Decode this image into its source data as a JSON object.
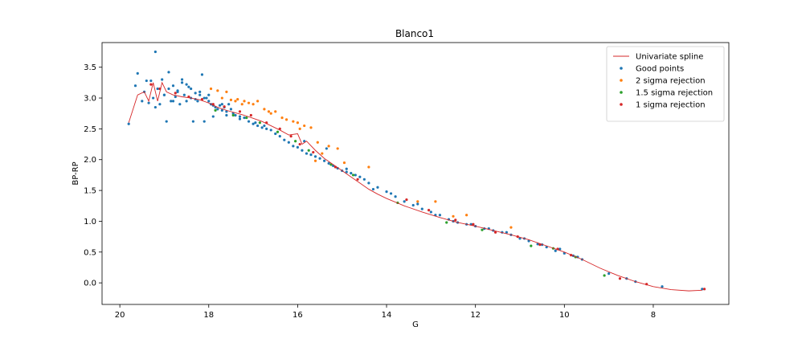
{
  "chart_data": {
    "type": "scatter",
    "title": "Blanco1",
    "xlabel": "G",
    "ylabel": "BP-RP",
    "xlim": [
      20.4,
      6.3
    ],
    "ylim": [
      -0.35,
      3.9
    ],
    "x_inverted": true,
    "xticks": [
      20,
      18,
      16,
      14,
      12,
      10,
      8
    ],
    "yticks": [
      0.0,
      0.5,
      1.0,
      1.5,
      2.0,
      2.5,
      3.0,
      3.5
    ],
    "xtick_labels": [
      "20",
      "18",
      "16",
      "14",
      "12",
      "10",
      "8"
    ],
    "ytick_labels": [
      "0.0",
      "0.5",
      "1.0",
      "1.5",
      "2.0",
      "2.5",
      "3.0",
      "3.5"
    ],
    "grid": false,
    "legend_position": "top-right",
    "series": [
      {
        "name": "Univariate spline",
        "kind": "line",
        "color": "#d62728",
        "x": [
          19.8,
          19.6,
          19.45,
          19.35,
          19.25,
          19.15,
          19.05,
          18.95,
          18.8,
          18.6,
          18.4,
          18.2,
          18.0,
          17.8,
          17.6,
          17.4,
          17.2,
          17.0,
          16.8,
          16.6,
          16.4,
          16.2,
          16.0,
          15.9,
          15.8,
          15.6,
          15.4,
          15.2,
          15.0,
          14.8,
          14.6,
          14.4,
          14.2,
          14.0,
          13.6,
          13.2,
          12.8,
          12.4,
          12.0,
          11.6,
          11.2,
          10.8,
          10.4,
          10.0,
          9.6,
          9.2,
          8.8,
          8.4,
          8.0,
          7.6,
          7.2,
          6.9
        ],
        "y": [
          2.6,
          3.05,
          3.1,
          2.95,
          3.25,
          2.95,
          3.25,
          3.1,
          3.05,
          3.02,
          3.0,
          2.97,
          2.92,
          2.85,
          2.8,
          2.76,
          2.72,
          2.67,
          2.62,
          2.55,
          2.48,
          2.4,
          2.42,
          2.25,
          2.3,
          2.15,
          2.02,
          1.92,
          1.82,
          1.72,
          1.62,
          1.52,
          1.44,
          1.37,
          1.25,
          1.15,
          1.06,
          0.98,
          0.92,
          0.85,
          0.78,
          0.7,
          0.6,
          0.5,
          0.38,
          0.24,
          0.12,
          0.02,
          -0.06,
          -0.11,
          -0.13,
          -0.12
        ]
      },
      {
        "name": "Good points",
        "kind": "scatter",
        "color": "#1f77b4",
        "x": [
          19.8,
          19.65,
          19.6,
          19.5,
          19.45,
          19.35,
          19.3,
          19.25,
          19.2,
          19.15,
          19.1,
          19.05,
          19.0,
          18.95,
          18.9,
          18.85,
          18.8,
          18.75,
          18.7,
          18.65,
          18.6,
          18.55,
          18.5,
          18.45,
          18.4,
          18.35,
          18.3,
          18.25,
          18.2,
          18.15,
          18.1,
          18.05,
          18.0,
          17.95,
          17.9,
          17.85,
          17.8,
          17.75,
          17.7,
          17.65,
          17.6,
          17.55,
          17.5,
          17.45,
          17.4,
          17.3,
          17.2,
          17.1,
          17.0,
          16.9,
          16.8,
          16.7,
          16.6,
          16.5,
          16.4,
          16.3,
          16.2,
          16.1,
          16.0,
          15.9,
          15.8,
          15.7,
          15.6,
          15.5,
          15.4,
          15.3,
          15.2,
          15.1,
          15.0,
          14.9,
          14.8,
          14.7,
          14.6,
          14.5,
          14.4,
          14.2,
          14.0,
          13.8,
          13.6,
          13.4,
          13.2,
          13.0,
          12.8,
          12.6,
          12.4,
          12.2,
          12.0,
          11.8,
          11.6,
          11.4,
          11.2,
          11.0,
          10.8,
          10.6,
          10.4,
          10.2,
          10.0,
          9.8,
          9.6,
          9.0,
          8.6,
          8.4,
          7.8,
          6.9,
          19.2,
          19.0,
          18.9,
          18.7,
          18.5,
          18.3,
          18.1,
          17.9,
          17.7,
          19.4,
          18.8,
          18.6,
          18.4,
          18.2,
          18.0,
          17.6,
          17.3,
          16.95,
          16.75,
          15.85,
          15.35,
          14.9,
          14.3,
          13.9,
          13.3,
          12.9,
          12.5,
          12.1,
          11.7,
          11.3,
          10.9,
          10.5,
          10.1,
          9.7
        ],
        "y": [
          2.58,
          3.2,
          3.4,
          2.95,
          3.1,
          2.92,
          3.28,
          3.0,
          2.85,
          3.15,
          2.9,
          3.3,
          3.05,
          2.62,
          3.15,
          2.95,
          3.2,
          3.02,
          3.12,
          2.9,
          3.25,
          3.05,
          2.95,
          3.18,
          3.0,
          2.62,
          3.08,
          2.95,
          3.1,
          3.38,
          2.62,
          3.0,
          2.95,
          2.9,
          2.88,
          2.85,
          2.82,
          2.88,
          2.8,
          2.85,
          2.78,
          2.9,
          2.82,
          2.75,
          2.72,
          2.7,
          2.68,
          2.62,
          2.58,
          2.55,
          2.52,
          2.5,
          2.48,
          2.42,
          2.38,
          2.32,
          2.28,
          2.22,
          2.2,
          2.15,
          2.1,
          2.08,
          2.05,
          2.02,
          1.98,
          1.94,
          1.9,
          1.86,
          1.82,
          1.8,
          1.78,
          1.75,
          1.72,
          1.68,
          1.62,
          1.55,
          1.48,
          1.4,
          1.32,
          1.26,
          1.2,
          1.15,
          1.1,
          1.03,
          0.98,
          0.95,
          0.92,
          0.88,
          0.85,
          0.82,
          0.78,
          0.72,
          0.68,
          0.63,
          0.58,
          0.52,
          0.48,
          0.44,
          0.38,
          0.15,
          0.07,
          0.02,
          -0.06,
          -0.1,
          3.75,
          3.05,
          3.42,
          3.1,
          3.22,
          2.98,
          3.0,
          2.7,
          2.9,
          3.28,
          2.95,
          3.3,
          3.15,
          3.05,
          3.05,
          2.72,
          2.66,
          2.6,
          2.55,
          2.3,
          2.18,
          1.85,
          1.52,
          1.45,
          1.28,
          1.1,
          1.0,
          0.95,
          0.88,
          0.82,
          0.72,
          0.62,
          0.55,
          0.42
        ]
      },
      {
        "name": "2 sigma rejection",
        "kind": "scatter",
        "color": "#ff7f0e",
        "x": [
          17.95,
          17.8,
          17.7,
          17.6,
          17.5,
          17.4,
          17.35,
          17.2,
          17.1,
          17.0,
          16.9,
          16.75,
          16.6,
          16.5,
          16.35,
          16.25,
          16.1,
          16.0,
          15.85,
          15.7,
          15.55,
          15.45,
          15.3,
          15.1,
          14.4,
          13.3,
          12.9,
          12.5,
          12.2,
          11.2,
          17.25,
          16.65,
          15.95,
          15.6,
          14.95
        ],
        "y": [
          3.15,
          3.12,
          3.0,
          3.1,
          2.97,
          2.95,
          2.98,
          2.95,
          2.92,
          2.9,
          2.95,
          2.82,
          2.75,
          2.78,
          2.68,
          2.65,
          2.62,
          2.6,
          2.55,
          2.52,
          2.28,
          2.1,
          2.22,
          2.18,
          1.88,
          1.32,
          1.32,
          1.08,
          1.1,
          0.9,
          2.9,
          2.78,
          2.5,
          1.98,
          1.95
        ]
      },
      {
        "name": "1.5 sigma rejection",
        "kind": "scatter",
        "color": "#2ca02c",
        "x": [
          17.85,
          17.45,
          17.15,
          16.85,
          16.45,
          16.05,
          15.75,
          15.25,
          14.75,
          13.75,
          12.65,
          11.85,
          10.75,
          10.25,
          9.75,
          9.1
        ],
        "y": [
          2.8,
          2.72,
          2.68,
          2.6,
          2.45,
          2.3,
          2.15,
          1.92,
          1.75,
          1.3,
          0.98,
          0.86,
          0.6,
          0.56,
          0.42,
          0.12
        ]
      },
      {
        "name": "1 sigma rejection",
        "kind": "scatter",
        "color": "#d62728",
        "x": [
          19.3,
          19.1,
          18.75,
          18.45,
          18.15,
          17.9,
          17.65,
          17.3,
          17.05,
          16.7,
          16.4,
          16.15,
          15.95,
          15.65,
          15.15,
          14.65,
          13.55,
          13.05,
          12.45,
          12.05,
          11.55,
          11.05,
          10.55,
          10.15,
          9.85,
          8.75,
          8.15,
          6.85
        ],
        "y": [
          3.22,
          3.15,
          3.08,
          3.02,
          2.98,
          2.9,
          2.86,
          2.78,
          2.72,
          2.6,
          2.5,
          2.38,
          2.25,
          2.12,
          1.88,
          1.68,
          1.35,
          1.18,
          1.02,
          0.95,
          0.82,
          0.75,
          0.62,
          0.55,
          0.45,
          0.07,
          -0.02,
          -0.1
        ]
      }
    ]
  }
}
